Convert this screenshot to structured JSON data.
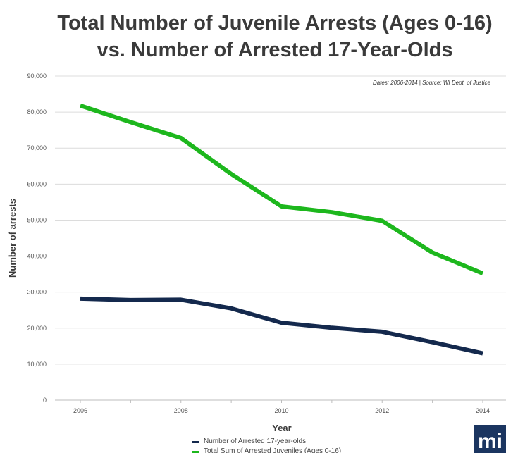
{
  "chart_data": {
    "type": "line",
    "title_line1": "Total Number of Juvenile Arrests (Ages 0-16)",
    "title_line2": "vs. Number of Arrested 17-Year-Olds",
    "source_note": "Dates: 2006-2014 | Source: WI Dept. of Justice",
    "xlabel": "Year",
    "ylabel": "Number of arrests",
    "x": [
      2006,
      2007,
      2008,
      2009,
      2010,
      2011,
      2012,
      2013,
      2014
    ],
    "x_tick_labels": [
      "2006",
      "2008",
      "2010",
      "2012",
      "2014"
    ],
    "x_tick_values": [
      2006,
      2008,
      2010,
      2012,
      2014
    ],
    "y_tick_labels": [
      "0",
      "10,000",
      "20,000",
      "30,000",
      "40,000",
      "50,000",
      "60,000",
      "70,000",
      "80,000",
      "90,000"
    ],
    "y_tick_values": [
      0,
      10000,
      20000,
      30000,
      40000,
      50000,
      60000,
      70000,
      80000,
      90000
    ],
    "ylim": [
      0,
      90000
    ],
    "xlim": [
      2005.5,
      2014.5
    ],
    "grid": true,
    "legend_position": "bottom",
    "series": [
      {
        "name": "Number of Arrested 17-year-olds",
        "color": "#14294d",
        "values": [
          28200,
          27800,
          27900,
          25500,
          21500,
          20100,
          19000,
          16100,
          13000
        ]
      },
      {
        "name": "Total Sum of Arrested Juveniles (Ages 0-16)",
        "color": "#1db71d",
        "values": [
          81800,
          77200,
          72800,
          62800,
          53800,
          52200,
          49800,
          41000,
          35200
        ]
      }
    ]
  },
  "logo_text": "mi"
}
